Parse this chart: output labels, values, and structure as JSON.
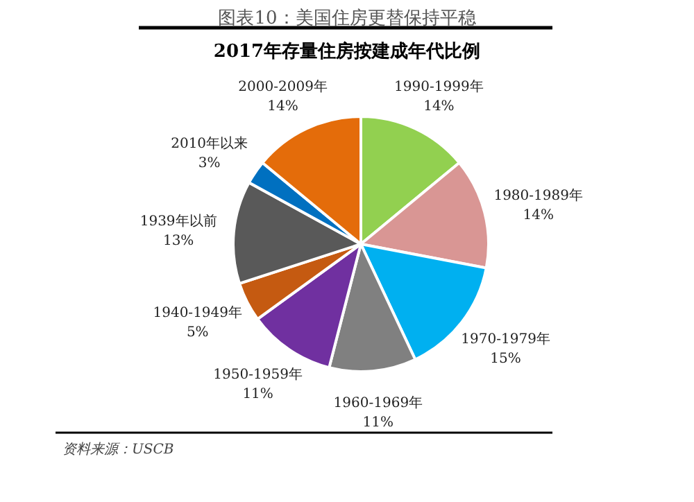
{
  "chart_data": {
    "type": "pie",
    "title": "图表10：美国住房更替保持平稳",
    "subtitle": "2017年存量住房按建成年代比例",
    "categories": [
      "1990-1999年",
      "1980-1989年",
      "1970-1979年",
      "1960-1969年",
      "1950-1959年",
      "1940-1949年",
      "1939年以前",
      "2010年以来",
      "2000-2009年"
    ],
    "values": [
      14,
      14,
      15,
      11,
      11,
      5,
      13,
      3,
      14
    ],
    "colors": [
      "#92d050",
      "#d99694",
      "#00b0f0",
      "#808080",
      "#7030a0",
      "#c55a11",
      "#595959",
      "#0070c0",
      "#e46c0a"
    ],
    "value_labels": [
      "14%",
      "14%",
      "15%",
      "11%",
      "11%",
      "5%",
      "13%",
      "3%",
      "14%"
    ],
    "annotations": [
      "资料来源：USCB"
    ]
  }
}
